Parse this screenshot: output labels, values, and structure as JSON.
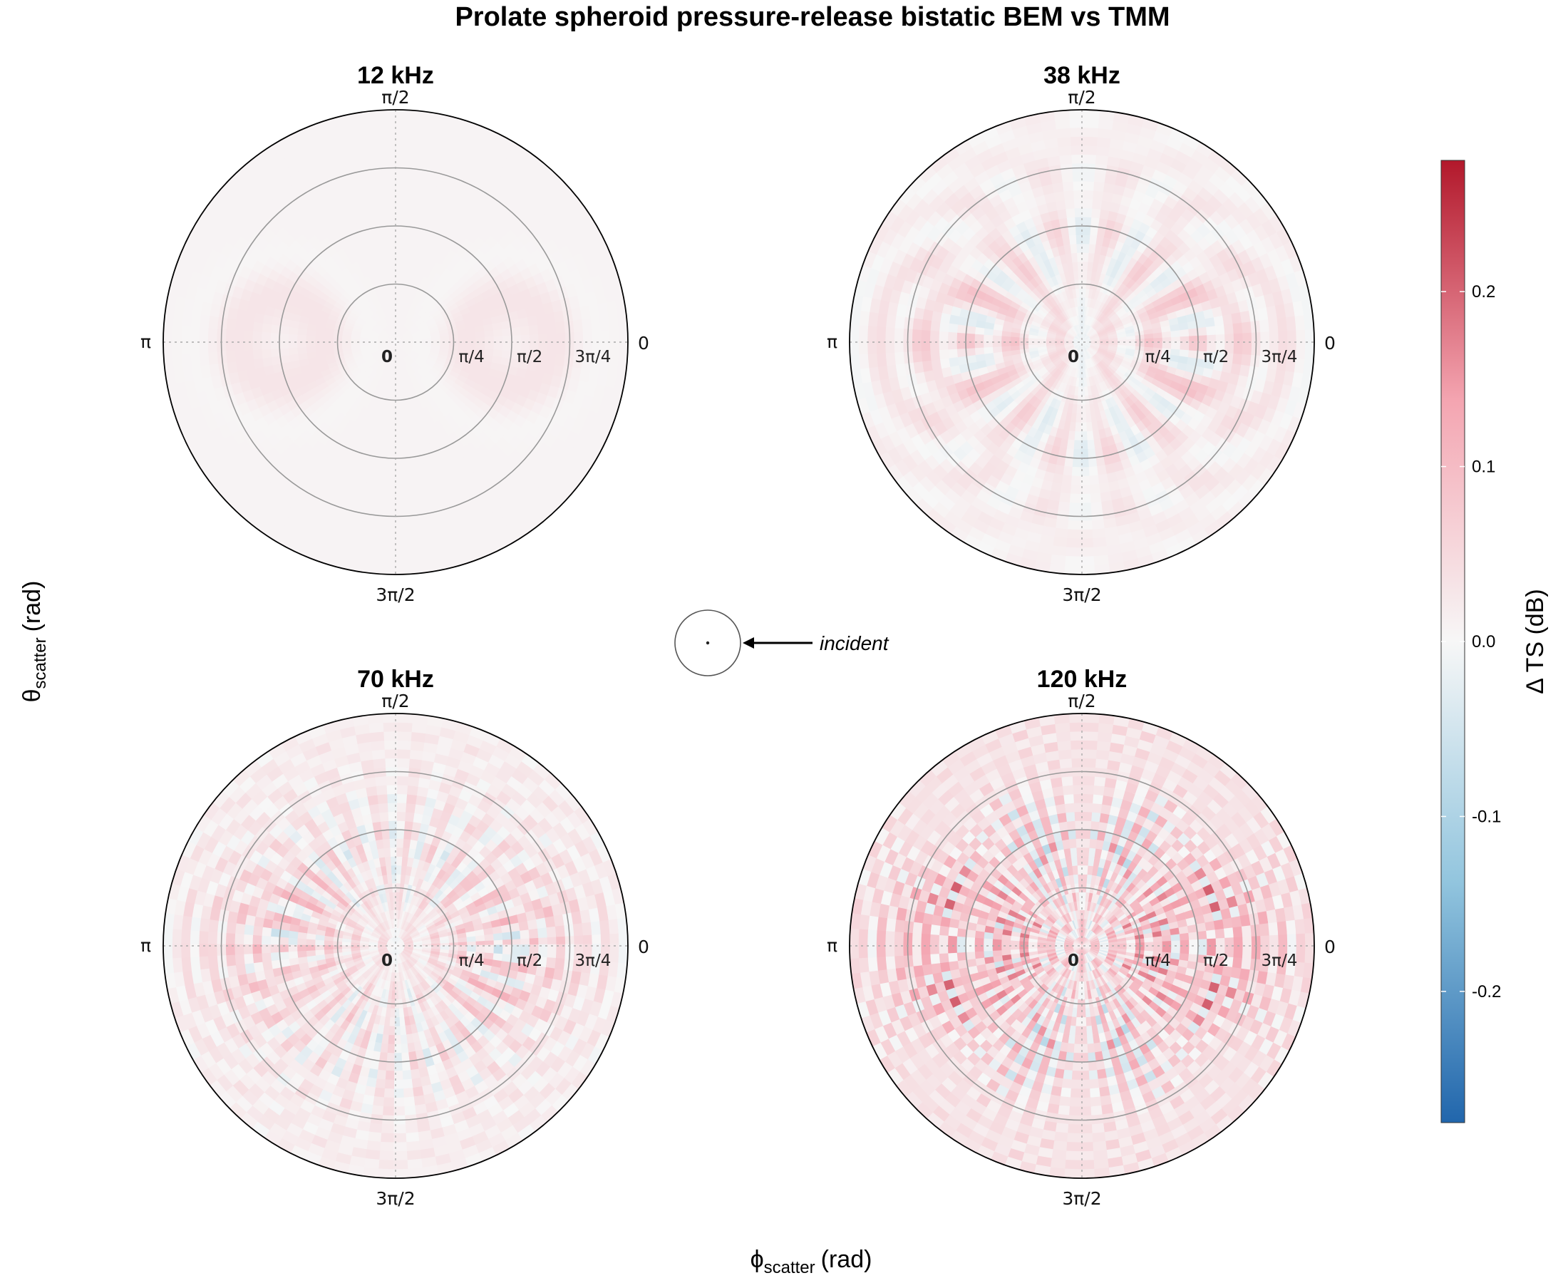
{
  "chart_data": {
    "type": "heatmap",
    "subtype": "polar-grid",
    "title": "Prolate spheroid pressure-release bistatic BEM vs TMM",
    "xlabel": {
      "base": "ϕ",
      "sub": "scatter",
      "unit": "(rad)"
    },
    "ylabel": {
      "base": "θ",
      "sub": "scatter",
      "unit": "(rad)"
    },
    "grid": true,
    "colorbar": {
      "title": "Δ TS (dB)",
      "range": [
        -0.275,
        0.275
      ],
      "ticks": [
        {
          "value": 0.2,
          "label": "0.2"
        },
        {
          "value": 0.1,
          "label": "0.1"
        },
        {
          "value": 0.0,
          "label": "0.0"
        },
        {
          "value": -0.1,
          "label": "-0.1"
        },
        {
          "value": -0.2,
          "label": "-0.2"
        }
      ],
      "colors": [
        "#2166ac",
        "#92c5de",
        "#f7f7f7",
        "#f4a5b1",
        "#b2182b"
      ]
    },
    "angular_labels": {
      "right": "0",
      "top": "π/2",
      "left": "π",
      "bottom": "3π/2"
    },
    "radial_labels": [
      "0",
      "π/4",
      "π/2",
      "3π/4"
    ],
    "radial_values": [
      0,
      0.7854,
      1.5708,
      2.3562
    ],
    "radial_max": 3.1416,
    "panels": [
      {
        "label": "12 kHz",
        "frequency_khz": 12,
        "max_abs_delta_ts": 0.03
      },
      {
        "label": "38 kHz",
        "frequency_khz": 38,
        "max_abs_delta_ts": 0.09
      },
      {
        "label": "70 kHz",
        "frequency_khz": 70,
        "max_abs_delta_ts": 0.12
      },
      {
        "label": "120 kHz",
        "frequency_khz": 120,
        "max_abs_delta_ts": 0.22
      }
    ],
    "annotation": {
      "text": "incident"
    }
  }
}
